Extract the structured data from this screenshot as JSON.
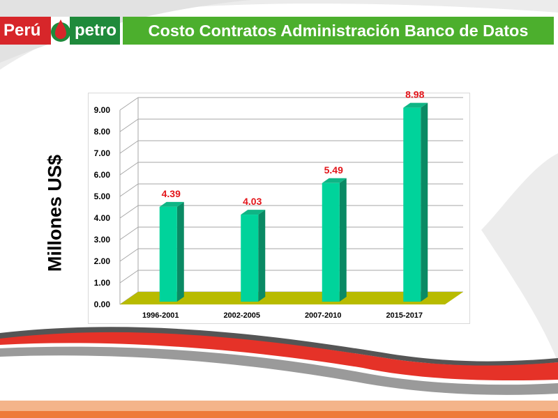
{
  "header": {
    "logo_left": "Perú",
    "logo_right": "petro",
    "title": "Costo Contratos Administración Banco de Datos"
  },
  "chart_data": {
    "type": "bar",
    "categories": [
      "1996-2001",
      "2002-2005",
      "2007-2010",
      "2015-2017"
    ],
    "values": [
      4.39,
      4.03,
      5.49,
      8.98
    ],
    "value_labels": [
      "4.39",
      "4.03",
      "5.49",
      "8.98"
    ],
    "ylabel": "Millones US$",
    "ylim": [
      0,
      9
    ],
    "yticks": [
      "0.00",
      "1.00",
      "2.00",
      "3.00",
      "4.00",
      "5.00",
      "6.00",
      "7.00",
      "8.00",
      "9.00"
    ],
    "grid": true,
    "legend": "none",
    "colors": {
      "bar": "#00d39b",
      "bar_side": "#0a8a64",
      "floor": "#b8bb00",
      "value_label": "#e3151a"
    }
  }
}
